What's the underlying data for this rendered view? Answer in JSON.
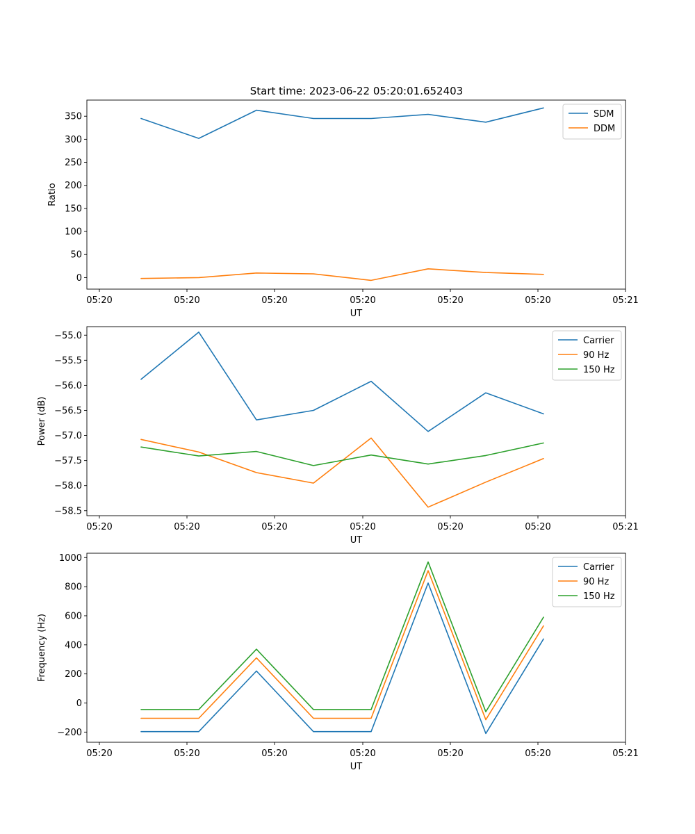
{
  "figure": {
    "title": "Start time: 2023-06-22 05:20:01.652403"
  },
  "colors": {
    "blue": "#1f77b4",
    "orange": "#ff7f0e",
    "green": "#2ca02c"
  },
  "chart_data": [
    {
      "type": "line",
      "title": "Start time: 2023-06-22 05:20:01.652403",
      "xlabel": "UT",
      "ylabel": "Ratio",
      "x_tick_labels": [
        "05:20",
        "05:20",
        "05:20",
        "05:20",
        "05:20",
        "05:20",
        "05:20"
      ],
      "x_tick_labels_right": "05:21",
      "ylim": [
        -25,
        385
      ],
      "y_ticks": [
        0,
        50,
        100,
        150,
        200,
        250,
        300,
        350
      ],
      "grid": false,
      "legend": "top-right",
      "series": [
        {
          "name": "SDM",
          "color": "#1f77b4",
          "values": [
            345,
            302,
            363,
            345,
            345,
            354,
            337,
            368
          ]
        },
        {
          "name": "DDM",
          "color": "#ff7f0e",
          "values": [
            -2,
            0,
            10,
            8,
            -6,
            19,
            11,
            7
          ]
        }
      ]
    },
    {
      "type": "line",
      "xlabel": "UT",
      "ylabel": "Power (dB)",
      "x_tick_labels": [
        "05:20",
        "05:20",
        "05:20",
        "05:20",
        "05:20",
        "05:20",
        "05:20"
      ],
      "x_tick_labels_right": "05:21",
      "ylim": [
        -58.6,
        -54.83
      ],
      "y_ticks": [
        -58.5,
        -58.0,
        -57.5,
        -57.0,
        -56.5,
        -56.0,
        -55.5,
        -55.0
      ],
      "y_tick_labels": [
        "−58.5",
        "−58.0",
        "−57.5",
        "−57.0",
        "−56.5",
        "−56.0",
        "−55.5",
        "−55.0"
      ],
      "grid": false,
      "legend": "top-right",
      "series": [
        {
          "name": "Carrier",
          "color": "#1f77b4",
          "values": [
            -55.88,
            -54.94,
            -56.69,
            -56.5,
            -55.92,
            -56.92,
            -56.15,
            -56.57
          ]
        },
        {
          "name": "90 Hz",
          "color": "#ff7f0e",
          "values": [
            -57.08,
            -57.33,
            -57.74,
            -57.95,
            -57.05,
            -58.43,
            -57.93,
            -57.46
          ]
        },
        {
          "name": "150 Hz",
          "color": "#2ca02c",
          "values": [
            -57.23,
            -57.41,
            -57.32,
            -57.6,
            -57.39,
            -57.57,
            -57.4,
            -57.15
          ]
        }
      ]
    },
    {
      "type": "line",
      "xlabel": "UT",
      "ylabel": "Frequency (Hz)",
      "x_tick_labels": [
        "05:20",
        "05:20",
        "05:20",
        "05:20",
        "05:20",
        "05:20",
        "05:20"
      ],
      "x_tick_labels_right": "05:21",
      "ylim": [
        -270,
        1030
      ],
      "y_ticks": [
        -200,
        0,
        200,
        400,
        600,
        800,
        1000
      ],
      "y_tick_labels": [
        "−200",
        "0",
        "200",
        "400",
        "600",
        "800",
        "1000"
      ],
      "grid": false,
      "legend": "top-right",
      "series": [
        {
          "name": "Carrier",
          "color": "#1f77b4",
          "values": [
            -197,
            -197,
            220,
            -197,
            -197,
            825,
            -210,
            440
          ]
        },
        {
          "name": "90 Hz",
          "color": "#ff7f0e",
          "values": [
            -105,
            -105,
            310,
            -105,
            -105,
            910,
            -115,
            530
          ]
        },
        {
          "name": "150 Hz",
          "color": "#2ca02c",
          "values": [
            -45,
            -45,
            370,
            -45,
            -45,
            970,
            -60,
            590
          ]
        }
      ]
    }
  ]
}
